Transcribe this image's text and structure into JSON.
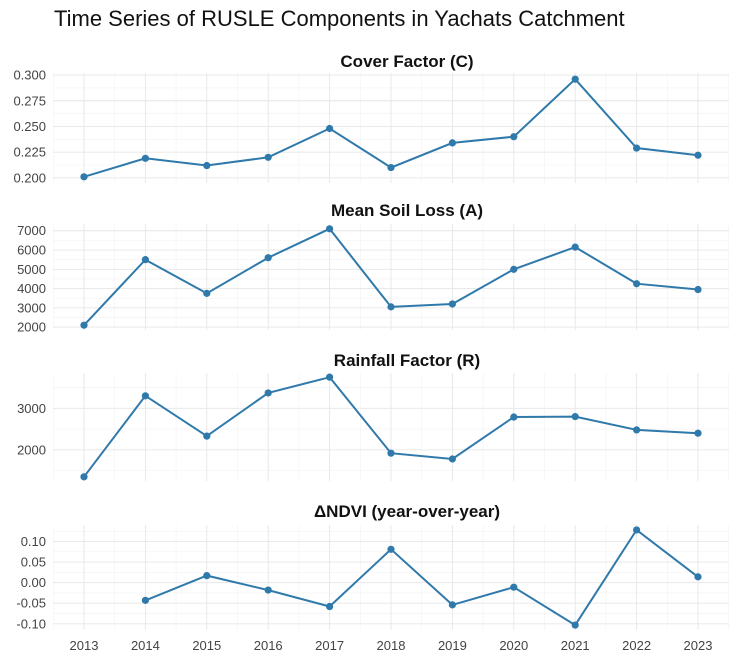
{
  "title": "Time Series of RUSLE Components in Yachats Catchment",
  "colors": {
    "series": "#2f79ab",
    "grid": "#e6e6e6"
  },
  "chart_data": [
    {
      "type": "line",
      "title": "Cover Factor (C)",
      "x": [
        2013,
        2014,
        2015,
        2016,
        2017,
        2018,
        2019,
        2020,
        2021,
        2022,
        2023
      ],
      "values": [
        0.201,
        0.219,
        0.212,
        0.22,
        0.248,
        0.21,
        0.234,
        0.24,
        0.296,
        0.229,
        0.222
      ],
      "ylim": [
        0.195,
        0.302
      ],
      "yticks": [
        0.2,
        0.225,
        0.25,
        0.275,
        0.3
      ],
      "ytick_labels": [
        "0.200",
        "0.225",
        "0.250",
        "0.275",
        "0.300"
      ],
      "xlabel": "",
      "ylabel": "",
      "grid": true
    },
    {
      "type": "line",
      "title": "Mean Soil Loss (A)",
      "x": [
        2013,
        2014,
        2015,
        2016,
        2017,
        2018,
        2019,
        2020,
        2021,
        2022,
        2023
      ],
      "values": [
        2100,
        5500,
        3750,
        5600,
        7100,
        3050,
        3200,
        5000,
        6150,
        4250,
        3950
      ],
      "ylim": [
        1850,
        7350
      ],
      "yticks": [
        2000,
        3000,
        4000,
        5000,
        6000,
        7000
      ],
      "ytick_labels": [
        "2000",
        "3000",
        "4000",
        "5000",
        "6000",
        "7000"
      ],
      "xlabel": "",
      "ylabel": "",
      "grid": true
    },
    {
      "type": "line",
      "title": "Rainfall Factor (R)",
      "x": [
        2013,
        2014,
        2015,
        2016,
        2017,
        2018,
        2019,
        2020,
        2021,
        2022,
        2023
      ],
      "values": [
        1350,
        3300,
        2330,
        3370,
        3750,
        1920,
        1780,
        2790,
        2800,
        2480,
        2400
      ],
      "ylim": [
        1250,
        3850
      ],
      "yticks": [
        2000,
        3000
      ],
      "ytick_labels": [
        "2000",
        "3000"
      ],
      "xlabel": "",
      "ylabel": "",
      "grid": true
    },
    {
      "type": "line",
      "title": "ΔNDVI (year-over-year)",
      "x": [
        2013,
        2014,
        2015,
        2016,
        2017,
        2018,
        2019,
        2020,
        2021,
        2022,
        2023
      ],
      "values": [
        null,
        -0.043,
        0.017,
        -0.018,
        -0.058,
        0.081,
        -0.054,
        -0.011,
        -0.103,
        0.128,
        0.014
      ],
      "ylim": [
        -0.115,
        0.14
      ],
      "yticks": [
        -0.1,
        -0.05,
        0.0,
        0.05,
        0.1
      ],
      "ytick_labels": [
        "-0.10",
        "-0.05",
        "0.00",
        "0.05",
        "0.10"
      ],
      "xlabel": "",
      "ylabel": "",
      "grid": true,
      "xtick_labels": [
        "2013",
        "2014",
        "2015",
        "2016",
        "2017",
        "2018",
        "2019",
        "2020",
        "2021",
        "2022",
        "2023"
      ]
    }
  ]
}
